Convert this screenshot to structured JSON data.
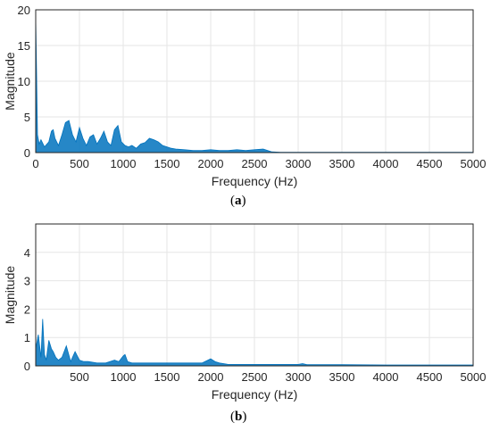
{
  "chart_data": [
    {
      "type": "area",
      "caption": "a",
      "xlabel": "Frequency (Hz)",
      "ylabel": "Magnitude",
      "xlim": [
        0,
        5000
      ],
      "ylim": [
        0,
        20
      ],
      "xticks": [
        "0",
        "500",
        "1000",
        "1500",
        "2000",
        "2500",
        "3000",
        "3500",
        "4000",
        "4500",
        "5000"
      ],
      "yticks": [
        "0",
        "5",
        "10",
        "15",
        "20"
      ],
      "grid": true,
      "color": "#0072BD",
      "x": [
        0,
        10,
        20,
        40,
        60,
        100,
        150,
        180,
        200,
        220,
        260,
        300,
        340,
        380,
        420,
        460,
        500,
        540,
        580,
        620,
        660,
        700,
        740,
        780,
        820,
        860,
        900,
        940,
        980,
        1020,
        1060,
        1100,
        1150,
        1200,
        1250,
        1300,
        1350,
        1400,
        1450,
        1500,
        1550,
        1600,
        1700,
        1800,
        1900,
        2000,
        2100,
        2200,
        2300,
        2400,
        2500,
        2600,
        2650,
        2700,
        2800,
        3000,
        3500,
        4000,
        4500,
        5000
      ],
      "y": [
        19,
        11,
        2.5,
        1.2,
        1.8,
        0.8,
        1.5,
        3.0,
        3.2,
        2.0,
        1.0,
        2.5,
        4.2,
        4.5,
        2.5,
        1.5,
        3.5,
        2.0,
        1.0,
        2.2,
        2.5,
        1.2,
        2.0,
        3.0,
        1.5,
        1.0,
        3.2,
        3.8,
        1.5,
        1.0,
        0.8,
        1.0,
        0.6,
        1.2,
        1.4,
        2.0,
        1.8,
        1.5,
        1.0,
        0.8,
        0.6,
        0.5,
        0.4,
        0.3,
        0.3,
        0.4,
        0.3,
        0.3,
        0.4,
        0.3,
        0.4,
        0.5,
        0.3,
        0.1,
        0.05,
        0.05,
        0.05,
        0.05,
        0.05,
        0.05
      ]
    },
    {
      "type": "area",
      "caption": "b",
      "xlabel": "Frequency (Hz)",
      "ylabel": "Magnitude",
      "xlim": [
        0,
        5000
      ],
      "ylim": [
        0,
        5
      ],
      "xticks": [
        "500",
        "1000",
        "1500",
        "2000",
        "2500",
        "3000",
        "3500",
        "4000",
        "4500",
        "5000"
      ],
      "yticks": [
        "0",
        "1",
        "2",
        "3",
        "4"
      ],
      "grid": true,
      "color": "#0072BD",
      "x": [
        0,
        30,
        60,
        80,
        100,
        120,
        150,
        180,
        200,
        230,
        260,
        300,
        350,
        400,
        420,
        450,
        500,
        550,
        600,
        700,
        800,
        900,
        950,
        1000,
        1020,
        1050,
        1100,
        1200,
        1300,
        1400,
        1500,
        1600,
        1700,
        1800,
        1900,
        2000,
        2050,
        2100,
        2200,
        2500,
        3000,
        3050,
        3100,
        3500,
        4000,
        4500,
        5000
      ],
      "y": [
        0.6,
        1.1,
        0.3,
        1.65,
        0.4,
        0.2,
        0.9,
        0.6,
        0.5,
        0.3,
        0.2,
        0.3,
        0.7,
        0.15,
        0.3,
        0.5,
        0.2,
        0.15,
        0.15,
        0.1,
        0.1,
        0.2,
        0.15,
        0.35,
        0.4,
        0.15,
        0.1,
        0.1,
        0.1,
        0.1,
        0.1,
        0.1,
        0.1,
        0.1,
        0.1,
        0.25,
        0.15,
        0.1,
        0.05,
        0.05,
        0.05,
        0.08,
        0.04,
        0.04,
        0.03,
        0.03,
        0.03
      ]
    }
  ]
}
